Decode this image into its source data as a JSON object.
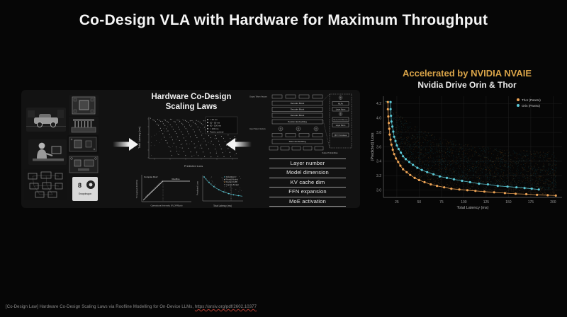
{
  "slide": {
    "title": "Co-Design VLA with Hardware for Maximum Throughput"
  },
  "left_panel": {
    "heading_line1": "Hardware  Co-Design",
    "heading_line2": "Scaling Laws",
    "thumbnails": [
      "autonomous-vehicle-photo",
      "teleoperation-workstation-photo",
      "network-schematic",
      "soc-chip-top",
      "compute-module-heatsink",
      "thor-pcb-board",
      "dev-kit-board",
      "snapdragon-8-box"
    ],
    "snapdragon": {
      "brand": "Snapdragon",
      "number": "8"
    },
    "scaling_plot": {
      "xlabel": "Predicted Loss",
      "ylabel": "Total Latency (ms)",
      "legend": [
        "< 20 ms",
        "20 - 50 ms",
        "50 - 100 ms",
        "> 100 ms",
        "Pareto optimal"
      ]
    },
    "roofline": {
      "compute_roof": "Compute Roof",
      "roofline": "Roofline",
      "memory_limit": "Achieved Memory Bandwidth Limit",
      "xlabel": "Operational Intensity (FLOP/Byte)",
      "ylabel": "Throughput (FLOP/s)"
    },
    "mini_plot": {
      "xlabel": "Total Latency (ms)",
      "ylabel": "Predicted Loss",
      "legend": [
        "MoE Hybrid",
        "Pareto Models",
        "Dense 0.5-8B",
        "Latency Budget"
      ]
    },
    "architecture": {
      "output_tokens": "Output Token Vectors",
      "decoder_block": "Decoder Block",
      "position_embedding": "Position Embedding",
      "input_tokens": "Input Token Vectors",
      "token_embedding": "Token Embedding",
      "output_probabilities": "Output Probabilities",
      "mlps": "MLPs",
      "layer_norm": "Layer Norm",
      "masked_attention": "Masked Self-Attention",
      "qkv_linear": "QKV / Out Linear",
      "params_table": [
        "Layer number",
        "Model dimension",
        "KV cache dim",
        "FFN expansion",
        "MoE activation"
      ]
    }
  },
  "right_panel": {
    "accel_title": "Accelerated by NVIDIA NVAIE",
    "subtitle": "Nvidia Drive Orin & Thor",
    "accent_color": "#D8A348"
  },
  "chart_data": {
    "type": "scatter",
    "title": "Nvidia Drive Orin & Thor",
    "xlabel": "Total Latency (ms)",
    "ylabel": "(Predicted) Loss",
    "xlim": [
      10,
      210
    ],
    "ylim": [
      2.9,
      4.3
    ],
    "xticks": [
      25,
      50,
      75,
      100,
      125,
      150,
      175,
      200
    ],
    "yticks": [
      3.0,
      3.2,
      3.4,
      3.6,
      3.8,
      4.0,
      4.2
    ],
    "grid": true,
    "legend_position": "top-right",
    "background_cloud": {
      "points_per_series": 1300
    },
    "series": [
      {
        "name": "Thor (Pareto)",
        "color": "#EFA556",
        "cloud_color": "#9C6224",
        "points": [
          [
            15,
            4.22
          ],
          [
            15,
            4.12
          ],
          [
            15.5,
            4.02
          ],
          [
            16,
            3.93
          ],
          [
            16.5,
            3.85
          ],
          [
            17,
            3.77
          ],
          [
            18,
            3.7
          ],
          [
            19,
            3.63
          ],
          [
            20.5,
            3.56
          ],
          [
            22,
            3.5
          ],
          [
            24,
            3.44
          ],
          [
            26.5,
            3.39
          ],
          [
            29,
            3.34
          ],
          [
            32,
            3.29
          ],
          [
            36,
            3.25
          ],
          [
            40,
            3.21
          ],
          [
            45,
            3.17
          ],
          [
            50,
            3.14
          ],
          [
            56,
            3.11
          ],
          [
            63,
            3.08
          ],
          [
            70,
            3.06
          ],
          [
            78,
            3.04
          ],
          [
            86,
            3.02
          ],
          [
            95,
            3.01
          ],
          [
            104,
            3.0
          ],
          [
            113,
            2.99
          ],
          [
            123,
            2.98
          ],
          [
            134,
            2.97
          ],
          [
            146,
            2.96
          ],
          [
            158,
            2.95
          ],
          [
            170,
            2.945
          ],
          [
            182,
            2.935
          ],
          [
            194,
            2.93
          ],
          [
            203,
            2.925
          ]
        ]
      },
      {
        "name": "Orin (Pareto)",
        "color": "#5BC8D6",
        "cloud_color": "#1D6F7C",
        "points": [
          [
            18,
            4.22
          ],
          [
            18,
            4.12
          ],
          [
            18.5,
            4.03
          ],
          [
            19,
            3.95
          ],
          [
            20,
            3.88
          ],
          [
            21,
            3.81
          ],
          [
            22,
            3.74
          ],
          [
            23.5,
            3.68
          ],
          [
            25,
            3.62
          ],
          [
            27,
            3.57
          ],
          [
            29.5,
            3.52
          ],
          [
            32,
            3.47
          ],
          [
            35,
            3.43
          ],
          [
            39,
            3.39
          ],
          [
            43,
            3.35
          ],
          [
            48,
            3.31
          ],
          [
            53,
            3.28
          ],
          [
            59,
            3.25
          ],
          [
            66,
            3.22
          ],
          [
            73,
            3.19
          ],
          [
            81,
            3.17
          ],
          [
            89,
            3.15
          ],
          [
            98,
            3.13
          ],
          [
            107,
            3.11
          ],
          [
            117,
            3.09
          ],
          [
            127,
            3.08
          ],
          [
            138,
            3.06
          ],
          [
            149,
            3.05
          ],
          [
            159,
            3.04
          ],
          [
            168,
            3.03
          ],
          [
            176,
            3.02
          ],
          [
            184,
            3.01
          ]
        ]
      }
    ]
  },
  "footer": {
    "citation_prefix": "[Co-Design Law] Hardware Co-Design Scaling Laws via Roofline Modelling for On-Device LLMs, ",
    "url": "https://arxiv.org/pdf/2602.10377"
  }
}
